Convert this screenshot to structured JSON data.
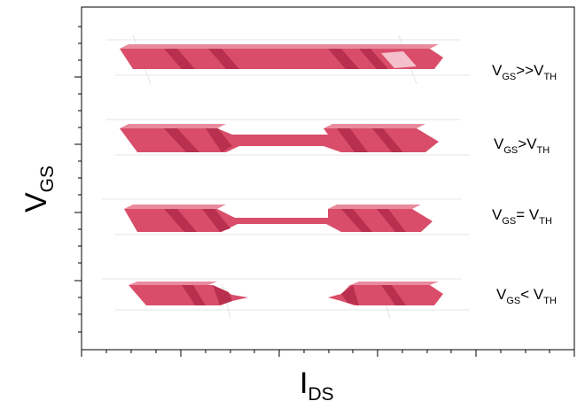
{
  "axes": {
    "y_label": {
      "main": "V",
      "sub": "GS"
    },
    "x_label": {
      "main": "I",
      "sub": "DS"
    }
  },
  "states": [
    {
      "main": "V",
      "sub": "GS",
      "relation": ">>",
      "main2": "V",
      "sub2": "TH"
    },
    {
      "main": "V",
      "sub": "GS",
      "relation": ">",
      "main2": "V",
      "sub2": "TH"
    },
    {
      "main": "V",
      "sub": "GS",
      "relation": "= ",
      "main2": "V",
      "sub2": "TH"
    },
    {
      "main": "V",
      "sub": "GS",
      "relation": "< ",
      "main2": "V",
      "sub2": "TH"
    }
  ]
}
